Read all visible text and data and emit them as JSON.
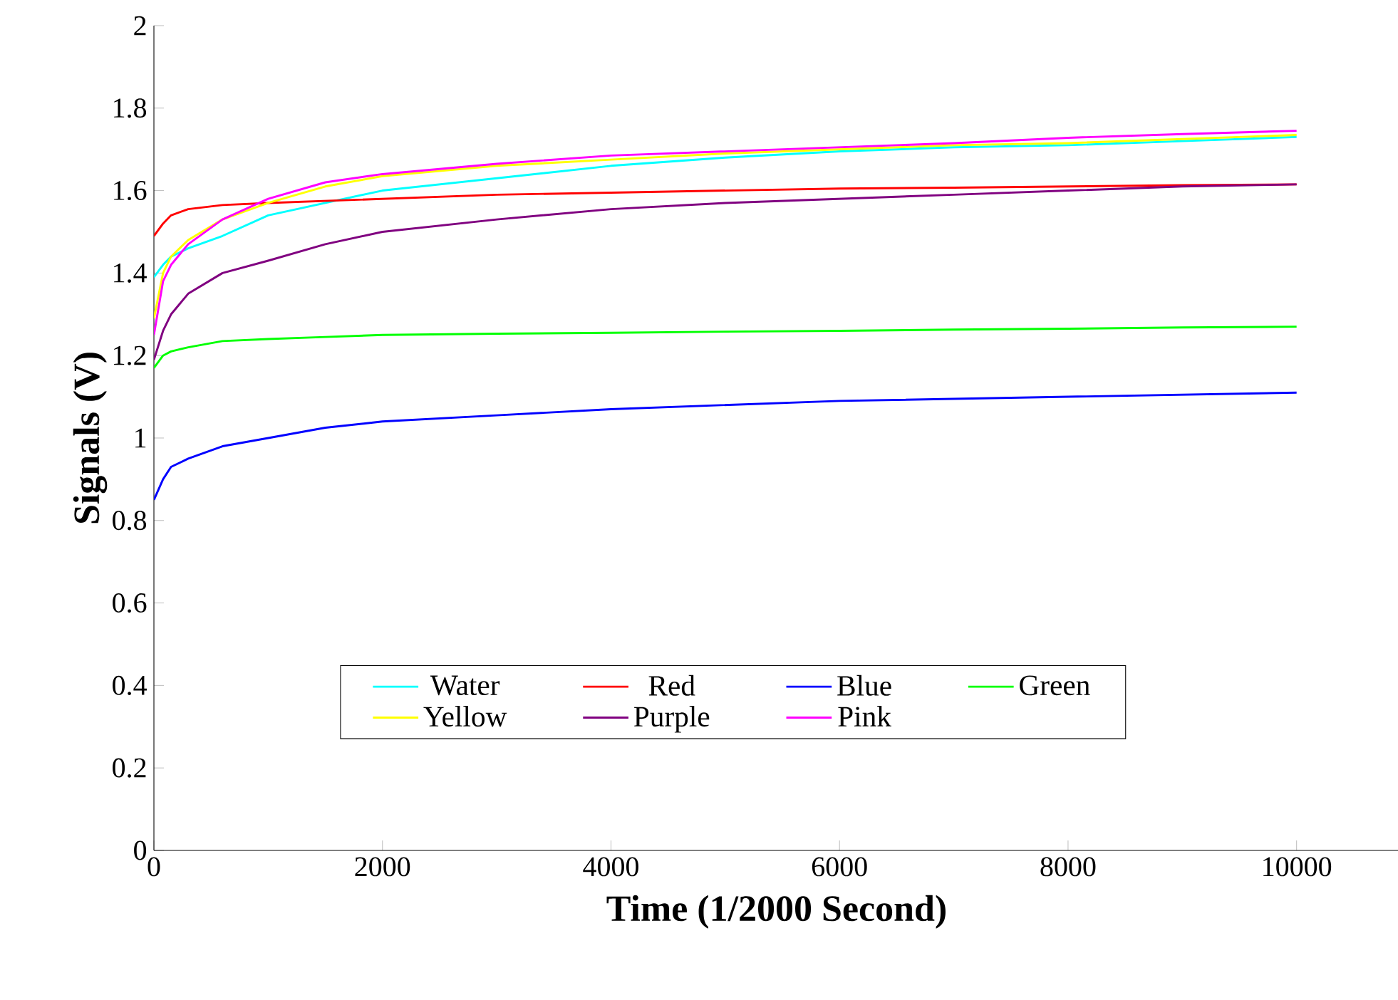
{
  "chart_data": {
    "type": "line",
    "xlabel": "Time (1/2000 Second)",
    "ylabel": "Signals (V)",
    "xlim": [
      0,
      10900
    ],
    "ylim": [
      0,
      2
    ],
    "xticks": [
      0,
      2000,
      4000,
      6000,
      8000,
      10000
    ],
    "yticks": [
      0,
      0.2,
      0.4,
      0.6,
      0.8,
      1,
      1.2,
      1.4,
      1.6,
      1.8,
      2
    ],
    "grid": false,
    "legend": "bottom",
    "marker": "none",
    "line_style": "solid",
    "x": [
      0,
      80,
      150,
      300,
      600,
      1000,
      1500,
      2000,
      3000,
      4000,
      5000,
      6000,
      7000,
      8000,
      9000,
      10000
    ],
    "series": [
      {
        "name": "Water",
        "color": "#00ffff",
        "values": [
          1.39,
          1.42,
          1.44,
          1.46,
          1.49,
          1.54,
          1.57,
          1.6,
          1.63,
          1.66,
          1.68,
          1.695,
          1.705,
          1.71,
          1.72,
          1.73
        ]
      },
      {
        "name": "Red",
        "color": "#ff0000",
        "values": [
          1.49,
          1.52,
          1.54,
          1.555,
          1.565,
          1.57,
          1.575,
          1.58,
          1.59,
          1.595,
          1.6,
          1.605,
          1.607,
          1.61,
          1.613,
          1.615
        ]
      },
      {
        "name": "Blue",
        "color": "#0000ff",
        "values": [
          0.85,
          0.9,
          0.93,
          0.95,
          0.98,
          1.0,
          1.025,
          1.04,
          1.055,
          1.07,
          1.08,
          1.09,
          1.095,
          1.1,
          1.105,
          1.11
        ]
      },
      {
        "name": "Green",
        "color": "#00ff00",
        "values": [
          1.17,
          1.2,
          1.21,
          1.22,
          1.235,
          1.24,
          1.245,
          1.25,
          1.253,
          1.255,
          1.258,
          1.26,
          1.263,
          1.265,
          1.268,
          1.27
        ]
      },
      {
        "name": "Yellow",
        "color": "#ffff00",
        "values": [
          1.29,
          1.4,
          1.44,
          1.48,
          1.53,
          1.57,
          1.61,
          1.635,
          1.66,
          1.675,
          1.69,
          1.7,
          1.71,
          1.715,
          1.725,
          1.735
        ]
      },
      {
        "name": "Purple",
        "color": "#800080",
        "values": [
          1.19,
          1.26,
          1.3,
          1.35,
          1.4,
          1.43,
          1.47,
          1.5,
          1.53,
          1.555,
          1.57,
          1.58,
          1.59,
          1.6,
          1.61,
          1.615
        ]
      },
      {
        "name": "Pink",
        "color": "#ff00ff",
        "values": [
          1.25,
          1.38,
          1.42,
          1.47,
          1.53,
          1.58,
          1.62,
          1.64,
          1.665,
          1.685,
          1.695,
          1.705,
          1.715,
          1.728,
          1.737,
          1.745
        ]
      }
    ]
  }
}
